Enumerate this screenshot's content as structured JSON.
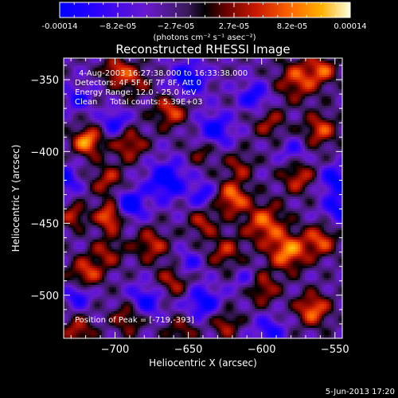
{
  "chart_data": {
    "type": "heatmap",
    "title": "Reconstructed RHESSI Image",
    "xlabel": "Heliocentric X (arcsec)",
    "ylabel": "Heliocentric Y (arcsec)",
    "xlim": [
      -735,
      -545
    ],
    "ylim": [
      -530,
      -335
    ],
    "x_ticks": [
      -700,
      -650,
      -600,
      -550
    ],
    "y_ticks": [
      -350,
      -400,
      -450,
      -500
    ],
    "x_tick_labels": [
      "−700",
      "−650",
      "−600",
      "−550"
    ],
    "y_tick_labels": [
      "−350",
      "−400",
      "−450",
      "−500"
    ],
    "colorbar": {
      "range": [
        -0.00014,
        0.00014
      ],
      "tick_labels": [
        "-0.00014",
        "−8.2e-05",
        "−2.7e-05",
        "2.7e-05",
        "8.2e-05",
        "0.00014"
      ],
      "unit": "(photons cm⁻² s⁻¹ asec⁻²)",
      "colors": [
        "#0000ff",
        "#2a00ff",
        "#6a1acc",
        "#3a1a5a",
        "#000000",
        "#660000",
        "#cc1a00",
        "#ff6a00",
        "#ffb000",
        "#ffffe0"
      ]
    },
    "annotations": {
      "time": "4-Aug-2003 16:27:38.000 to 16:33:38.000",
      "detectors": "Detectors: 4F 5F 6F 7F 8F, Att 0",
      "energy": "Energy Range: 12.0 - 25.0 keV",
      "clean": "Clean     Total counts: 5.39E+03",
      "peak": "Position of Peak = [-719,-393]"
    },
    "blobs": [
      {
        "x": -719,
        "y": -393,
        "v": 0.00014,
        "s": 7
      },
      {
        "x": -703,
        "y": -445,
        "v": 0.00013,
        "s": 7
      },
      {
        "x": -728,
        "y": -445,
        "v": 9e-05,
        "s": 6
      },
      {
        "x": -705,
        "y": -420,
        "v": 8e-05,
        "s": 8
      },
      {
        "x": -690,
        "y": -395,
        "v": 9e-05,
        "s": 8
      },
      {
        "x": -662,
        "y": -372,
        "v": 0.0001,
        "s": 8
      },
      {
        "x": -688,
        "y": -350,
        "v": 8e-05,
        "s": 8
      },
      {
        "x": -700,
        "y": -343,
        "v": 9e-05,
        "s": 6
      },
      {
        "x": -575,
        "y": -350,
        "v": 0.0001,
        "s": 10
      },
      {
        "x": -558,
        "y": -343,
        "v": 9e-05,
        "s": 7
      },
      {
        "x": -560,
        "y": -385,
        "v": 0.0001,
        "s": 8
      },
      {
        "x": -595,
        "y": -380,
        "v": 7e-05,
        "s": 8
      },
      {
        "x": -575,
        "y": -418,
        "v": 9e-05,
        "s": 8
      },
      {
        "x": -620,
        "y": -432,
        "v": 0.00012,
        "s": 8
      },
      {
        "x": -598,
        "y": -450,
        "v": 0.00011,
        "s": 10
      },
      {
        "x": -640,
        "y": -450,
        "v": 8e-05,
        "s": 7
      },
      {
        "x": -582,
        "y": -470,
        "v": 0.00013,
        "s": 9
      },
      {
        "x": -560,
        "y": -462,
        "v": 0.0001,
        "s": 8
      },
      {
        "x": -625,
        "y": -470,
        "v": 8e-05,
        "s": 8
      },
      {
        "x": -675,
        "y": -465,
        "v": 9e-05,
        "s": 8
      },
      {
        "x": -705,
        "y": -470,
        "v": 7e-05,
        "s": 8
      },
      {
        "x": -720,
        "y": -485,
        "v": 0.0001,
        "s": 8
      },
      {
        "x": -660,
        "y": -490,
        "v": 8e-05,
        "s": 8
      },
      {
        "x": -600,
        "y": -495,
        "v": 9e-05,
        "s": 8
      },
      {
        "x": -565,
        "y": -510,
        "v": 0.00012,
        "s": 8
      },
      {
        "x": -625,
        "y": -520,
        "v": 8e-05,
        "s": 7
      },
      {
        "x": -690,
        "y": -515,
        "v": 9e-05,
        "s": 8
      },
      {
        "x": -725,
        "y": -525,
        "v": 9e-05,
        "s": 7
      },
      {
        "x": -655,
        "y": -525,
        "v": 7e-05,
        "s": 7
      },
      {
        "x": -640,
        "y": -400,
        "v": 6e-05,
        "s": 7
      },
      {
        "x": -615,
        "y": -410,
        "v": 7e-05,
        "s": 7
      },
      {
        "x": -650,
        "y": -350,
        "v": -0.00012,
        "s": 8
      },
      {
        "x": -665,
        "y": -420,
        "v": -0.00012,
        "s": 9
      },
      {
        "x": -690,
        "y": -437,
        "v": -0.00013,
        "s": 7
      },
      {
        "x": -632,
        "y": -385,
        "v": -0.0001,
        "s": 8
      },
      {
        "x": -605,
        "y": -362,
        "v": -9e-05,
        "s": 7
      },
      {
        "x": -550,
        "y": -420,
        "v": -0.0001,
        "s": 7
      },
      {
        "x": -548,
        "y": -440,
        "v": -9e-05,
        "s": 7
      },
      {
        "x": -700,
        "y": -380,
        "v": -9e-05,
        "s": 6
      },
      {
        "x": -680,
        "y": -505,
        "v": -0.0001,
        "s": 8
      },
      {
        "x": -640,
        "y": -505,
        "v": -0.0001,
        "s": 8
      },
      {
        "x": -595,
        "y": -525,
        "v": -8e-05,
        "s": 7
      },
      {
        "x": -725,
        "y": -500,
        "v": -9e-05,
        "s": 6
      },
      {
        "x": -735,
        "y": -420,
        "v": -9e-05,
        "s": 7
      },
      {
        "x": -650,
        "y": -478,
        "v": -7e-05,
        "s": 6
      },
      {
        "x": -610,
        "y": -490,
        "v": -6e-05,
        "s": 6
      },
      {
        "x": -725,
        "y": -363,
        "v": -8e-05,
        "s": 6
      },
      {
        "x": -640,
        "y": -430,
        "v": -8e-05,
        "s": 6
      },
      {
        "x": -578,
        "y": -400,
        "v": -6e-05,
        "s": 6
      }
    ]
  },
  "footer": {
    "date": "5-Jun-2013 17:20"
  }
}
